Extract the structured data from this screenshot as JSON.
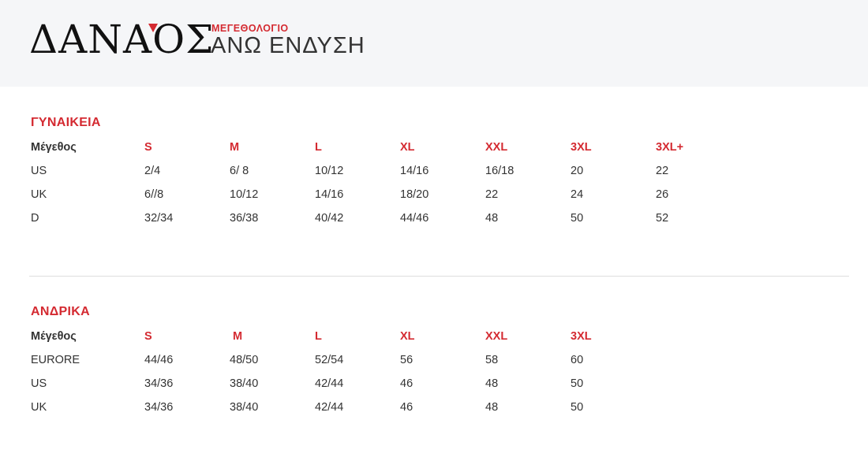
{
  "header": {
    "logo_text": "ΔΑΝΑΟΣ",
    "subtitle": "ΜΕΓΕΘΟΛΟΓΙΟ",
    "title": "ΑΝΩ ΕΝΔΥΣΗ",
    "accent_color": "#d42a31"
  },
  "women": {
    "title": "ΓΥΝΑΙΚΕΙΑ",
    "header": [
      "Μέγεθος",
      "S",
      "M",
      "L",
      "XL",
      "XXL",
      "3XL",
      "3XL+"
    ],
    "rows": [
      [
        "US",
        "2/4",
        "6/ 8",
        "10/12",
        "14/16",
        "16/18",
        "20",
        "22"
      ],
      [
        "UK",
        "6//8",
        "10/12",
        "14/16",
        "18/20",
        "22",
        "24",
        "26"
      ],
      [
        "D",
        "32/34",
        "36/38",
        "40/42",
        "44/46",
        "48",
        "50",
        "52"
      ]
    ]
  },
  "men": {
    "title": "ΑΝΔΡΙΚΑ",
    "header": [
      "Μέγεθος",
      "S",
      " M",
      "L",
      "XL",
      "XXL",
      "3XL"
    ],
    "rows": [
      [
        "EURORE",
        "44/46",
        "48/50",
        "52/54",
        "56",
        "58",
        "60"
      ],
      [
        "US",
        "34/36",
        "38/40",
        "42/44",
        "46",
        "48",
        "50"
      ],
      [
        "UK",
        "34/36",
        "38/40",
        "42/44",
        "46",
        "48",
        "50"
      ]
    ]
  }
}
